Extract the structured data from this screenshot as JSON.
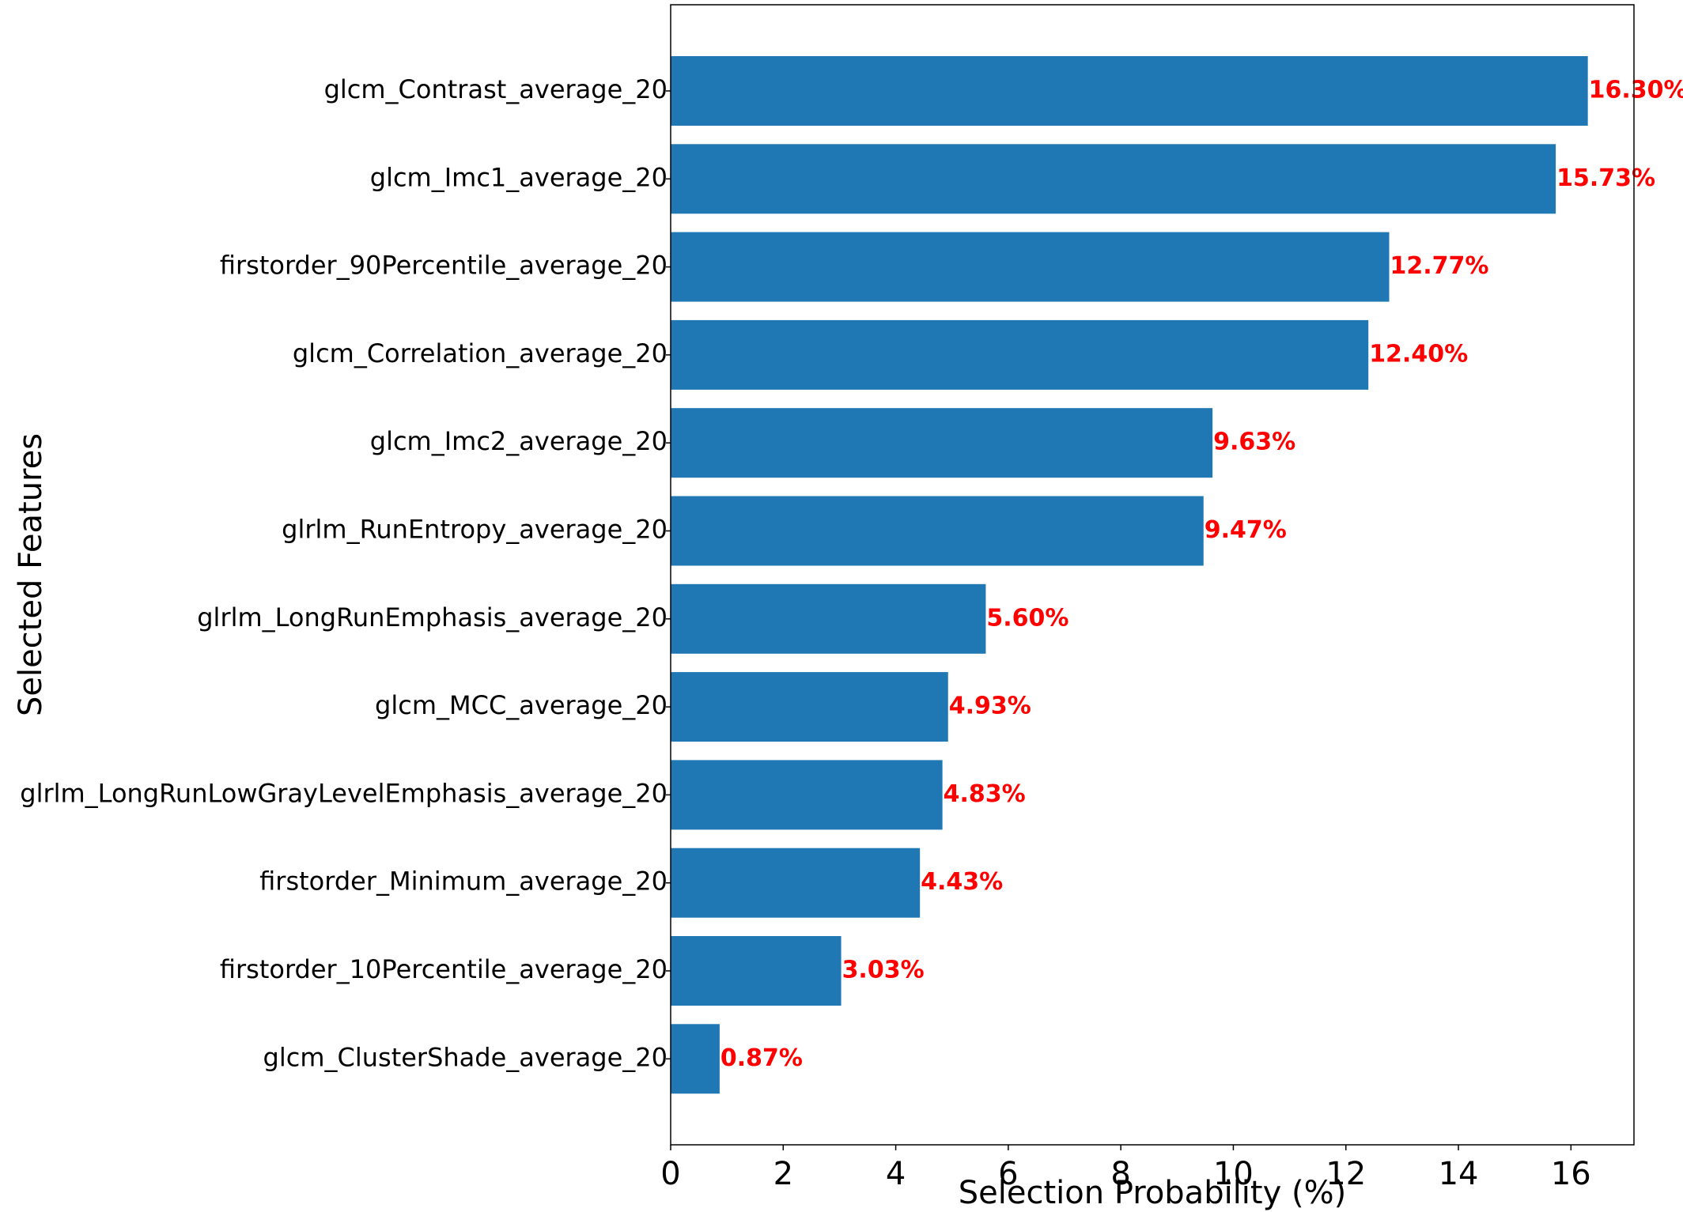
{
  "chart_data": {
    "type": "bar",
    "orientation": "horizontal",
    "categories": [
      "glcm_Contrast_average_20",
      "glcm_Imc1_average_20",
      "firstorder_90Percentile_average_20",
      "glcm_Correlation_average_20",
      "glcm_Imc2_average_20",
      "glrlm_RunEntropy_average_20",
      "glrlm_LongRunEmphasis_average_20",
      "glcm_MCC_average_20",
      "glrlm_LongRunLowGrayLevelEmphasis_average_20",
      "firstorder_Minimum_average_20",
      "firstorder_10Percentile_average_20",
      "glcm_ClusterShade_average_20"
    ],
    "values": [
      16.3,
      15.73,
      12.77,
      12.4,
      9.63,
      9.47,
      5.6,
      4.93,
      4.83,
      4.43,
      3.03,
      0.87
    ],
    "data_labels": [
      "16.30%",
      "15.73%",
      "12.77%",
      "12.40%",
      "9.63%",
      "9.47%",
      "5.60%",
      "4.93%",
      "4.83%",
      "4.43%",
      "3.03%",
      "0.87%"
    ],
    "xlabel": "Selection Probability (%)",
    "ylabel": "Selected Features",
    "xlim": [
      0,
      17.12
    ],
    "xticks": [
      0,
      2,
      4,
      6,
      8,
      10,
      12,
      14,
      16
    ],
    "grid": false,
    "bar_color": "#1f77b4",
    "label_color": "#ff0000"
  }
}
